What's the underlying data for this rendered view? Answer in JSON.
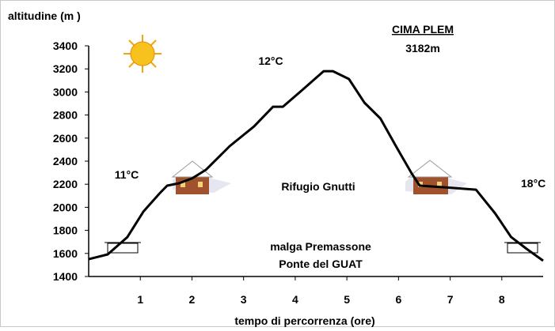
{
  "chart_data": {
    "type": "line",
    "title": "CIMA PLEM",
    "subtitle": "3182m",
    "y_label": "altitudine (m )",
    "x_label": "tempo di percorrenza (ore)",
    "annotations": [
      "12°C",
      "11°C",
      "18°C",
      "Rifugio Gnutti",
      "malga Premassone",
      "Ponte del GUAT"
    ],
    "color": "#000000",
    "x": [
      0,
      0.37,
      0.75,
      1.06,
      1.37,
      1.52,
      1.75,
      2.0,
      2.27,
      2.73,
      3.2,
      3.57,
      3.76,
      4.12,
      4.55,
      4.73,
      5.04,
      5.34,
      5.65,
      5.95,
      6.26,
      6.41,
      7.0,
      7.5,
      7.87,
      8.18,
      8.48,
      8.8
    ],
    "values": [
      1550,
      1592,
      1742,
      1962,
      2119,
      2188,
      2208,
      2250,
      2325,
      2530,
      2700,
      2872,
      2872,
      3010,
      3180,
      3180,
      3112,
      2907,
      2770,
      2530,
      2290,
      2188,
      2170,
      2153,
      1948,
      1742,
      1640,
      1537
    ],
    "xlim": [
      0,
      8.8
    ],
    "ylim": [
      1400,
      3400
    ],
    "xticks": [
      1,
      2,
      3,
      4,
      5,
      6,
      7,
      8
    ],
    "yticks": [
      1400,
      1600,
      1800,
      2000,
      2200,
      2400,
      2600,
      2800,
      3000,
      3200,
      3400
    ]
  }
}
